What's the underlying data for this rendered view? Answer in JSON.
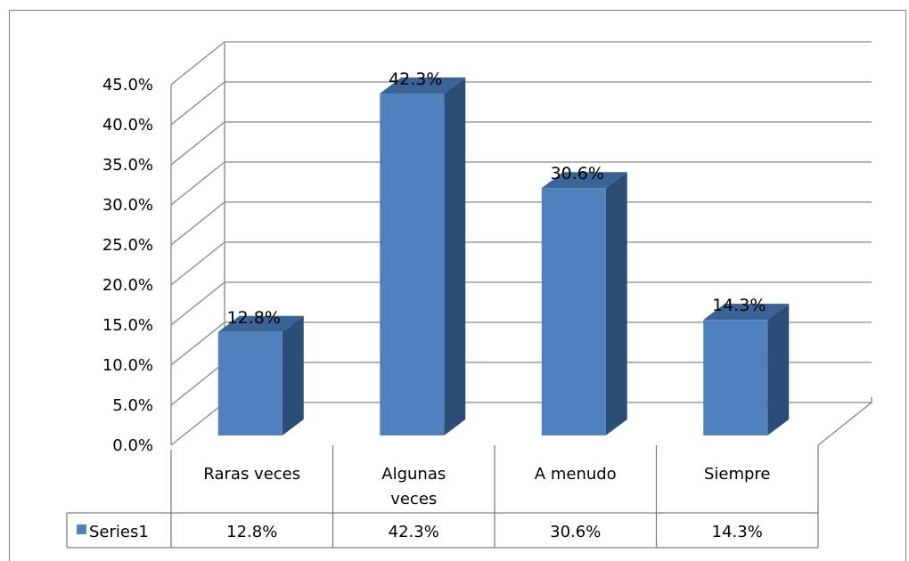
{
  "chart_data": {
    "type": "bar",
    "categories": [
      "Raras veces",
      "Algunas veces",
      "A menudo",
      "Siempre"
    ],
    "category_lines": [
      [
        "Raras veces"
      ],
      [
        "Algunas",
        "veces"
      ],
      [
        "A menudo"
      ],
      [
        "Siempre"
      ]
    ],
    "series": [
      {
        "name": "Series1",
        "values": [
          12.8,
          42.3,
          30.6,
          14.3
        ],
        "labels": [
          "12.8%",
          "42.3%",
          "30.6%",
          "14.3%"
        ]
      }
    ],
    "y_ticks": [
      "0.0%",
      "5.0%",
      "10.0%",
      "15.0%",
      "20.0%",
      "25.0%",
      "30.0%",
      "35.0%",
      "40.0%",
      "45.0%"
    ],
    "ylim": [
      0,
      45
    ],
    "grid": true,
    "legend": "data-table",
    "colors": {
      "front": "#4F81BD",
      "side": "#2C4D75",
      "top": "#3A6397",
      "grid": "#868686",
      "border": "#808080"
    }
  }
}
